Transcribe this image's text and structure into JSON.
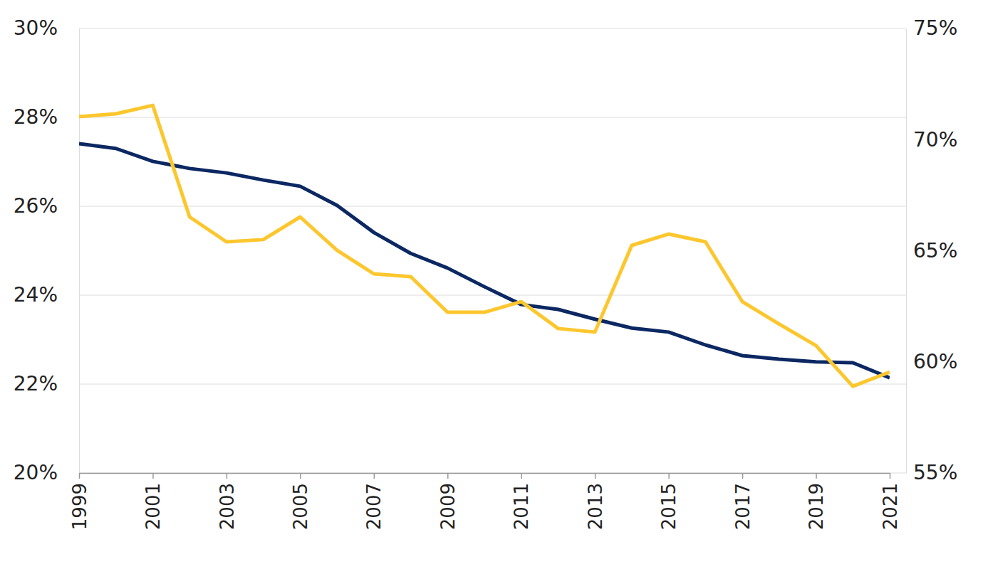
{
  "chart_data": {
    "type": "line",
    "x": [
      1999,
      2000,
      2001,
      2002,
      2003,
      2004,
      2005,
      2006,
      2007,
      2008,
      2009,
      2010,
      2011,
      2012,
      2013,
      2014,
      2015,
      2016,
      2017,
      2018,
      2019,
      2020,
      2021
    ],
    "xlim": [
      1999,
      2021
    ],
    "xticks": [
      1999,
      2001,
      2003,
      2005,
      2007,
      2009,
      2011,
      2013,
      2015,
      2017,
      2019,
      2021
    ],
    "ylim": [
      20,
      30
    ],
    "yticks": [
      {
        "value": 20,
        "label": "20%"
      },
      {
        "value": 22,
        "label": "22%"
      },
      {
        "value": 24,
        "label": "24%"
      },
      {
        "value": 26,
        "label": "26%"
      },
      {
        "value": 28,
        "label": "28%"
      },
      {
        "value": 30,
        "label": "30%"
      }
    ],
    "y2lim": [
      55,
      75
    ],
    "y2ticks": [
      {
        "value": 55,
        "label": "55%"
      },
      {
        "value": 60,
        "label": "60%"
      },
      {
        "value": 65,
        "label": "65%"
      },
      {
        "value": 70,
        "label": "70%"
      },
      {
        "value": 75,
        "label": "75%"
      }
    ],
    "grid": true,
    "series": [
      {
        "color": "#0c2863",
        "axis": "y",
        "values": [
          27.41,
          27.3,
          27.01,
          26.85,
          26.75,
          26.59,
          26.45,
          26.02,
          25.41,
          24.94,
          24.61,
          24.19,
          23.79,
          23.68,
          23.46,
          23.26,
          23.17,
          22.88,
          22.64,
          22.56,
          22.5,
          22.48,
          22.14
        ]
      },
      {
        "color": "#fcc72e",
        "axis": "y2",
        "values": [
          71.03,
          71.16,
          71.54,
          66.52,
          65.4,
          65.5,
          66.52,
          65.02,
          63.96,
          63.83,
          62.23,
          62.23,
          62.71,
          61.5,
          61.34,
          65.24,
          65.75,
          65.4,
          62.71,
          61.7,
          60.73,
          58.9,
          59.54
        ]
      }
    ]
  }
}
